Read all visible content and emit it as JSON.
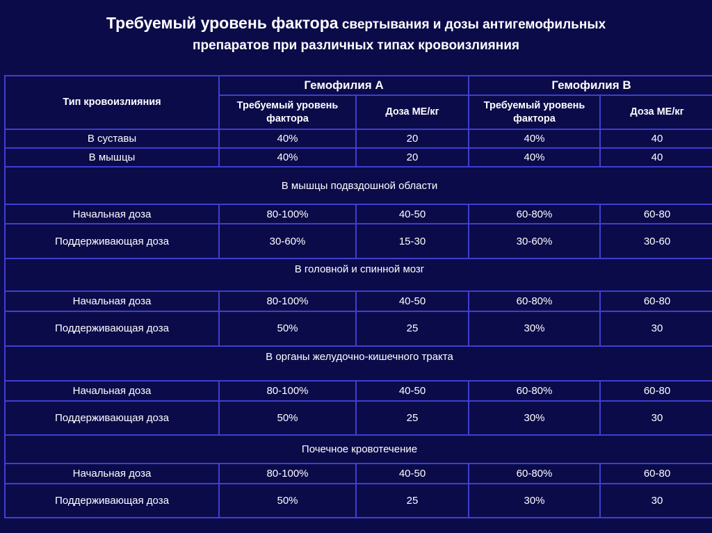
{
  "title": {
    "line1_big": "Требуемый уровень фактора",
    "line1_rest": "свертывания и дозы антигемофильных",
    "line2": "препаратов при различных типах кровоизлияния"
  },
  "table": {
    "col_type": "Тип кровоизлияния",
    "group_a": "Гемофилия А",
    "group_b": "Гемофилия В",
    "sub_level": "Требуемый уровень фактора",
    "sub_dose": "Доза МЕ/кг",
    "rows_simple": [
      {
        "type": "В суставы",
        "a_level": "40%",
        "a_dose": "20",
        "b_level": "40%",
        "b_dose": "40"
      },
      {
        "type": "В мышцы",
        "a_level": "40%",
        "a_dose": "20",
        "b_level": "40%",
        "b_dose": "40"
      }
    ],
    "sections": [
      {
        "title": "В мышцы подвздошной области",
        "initial": {
          "label": "Начальная доза",
          "a_level": "80-100%",
          "a_dose": "40-50",
          "b_level": "60-80%",
          "b_dose": "60-80"
        },
        "maint": {
          "label": "Поддерживающая доза",
          "a_level": "30-60%",
          "a_dose": "15-30",
          "b_level": "30-60%",
          "b_dose": "30-60"
        }
      },
      {
        "title": "В головной и спинной мозг",
        "initial": {
          "label": "Начальная доза",
          "a_level": "80-100%",
          "a_dose": "40-50",
          "b_level": "60-80%",
          "b_dose": "60-80"
        },
        "maint": {
          "label": "Поддерживающая доза",
          "a_level": "50%",
          "a_dose": "25",
          "b_level": "30%",
          "b_dose": "30"
        }
      },
      {
        "title": "В органы желудочно-кишечного тракта",
        "initial": {
          "label": "Начальная доза",
          "a_level": "80-100%",
          "a_dose": "40-50",
          "b_level": "60-80%",
          "b_dose": "60-80"
        },
        "maint": {
          "label": "Поддерживающая доза",
          "a_level": "50%",
          "a_dose": "25",
          "b_level": "30%",
          "b_dose": "30"
        }
      },
      {
        "title": "Почечное кровотечение",
        "initial": {
          "label": "Начальная доза",
          "a_level": "80-100%",
          "a_dose": "40-50",
          "b_level": "60-80%",
          "b_dose": "60-80"
        },
        "maint": {
          "label": "Поддерживающая доза",
          "a_level": "50%",
          "a_dose": "25",
          "b_level": "30%",
          "b_dose": "30"
        }
      }
    ]
  },
  "colors": {
    "background": "#0b0b4a",
    "grid": "#3f3fd0",
    "group_header": "#e11a1a",
    "text": "#ffffff"
  }
}
